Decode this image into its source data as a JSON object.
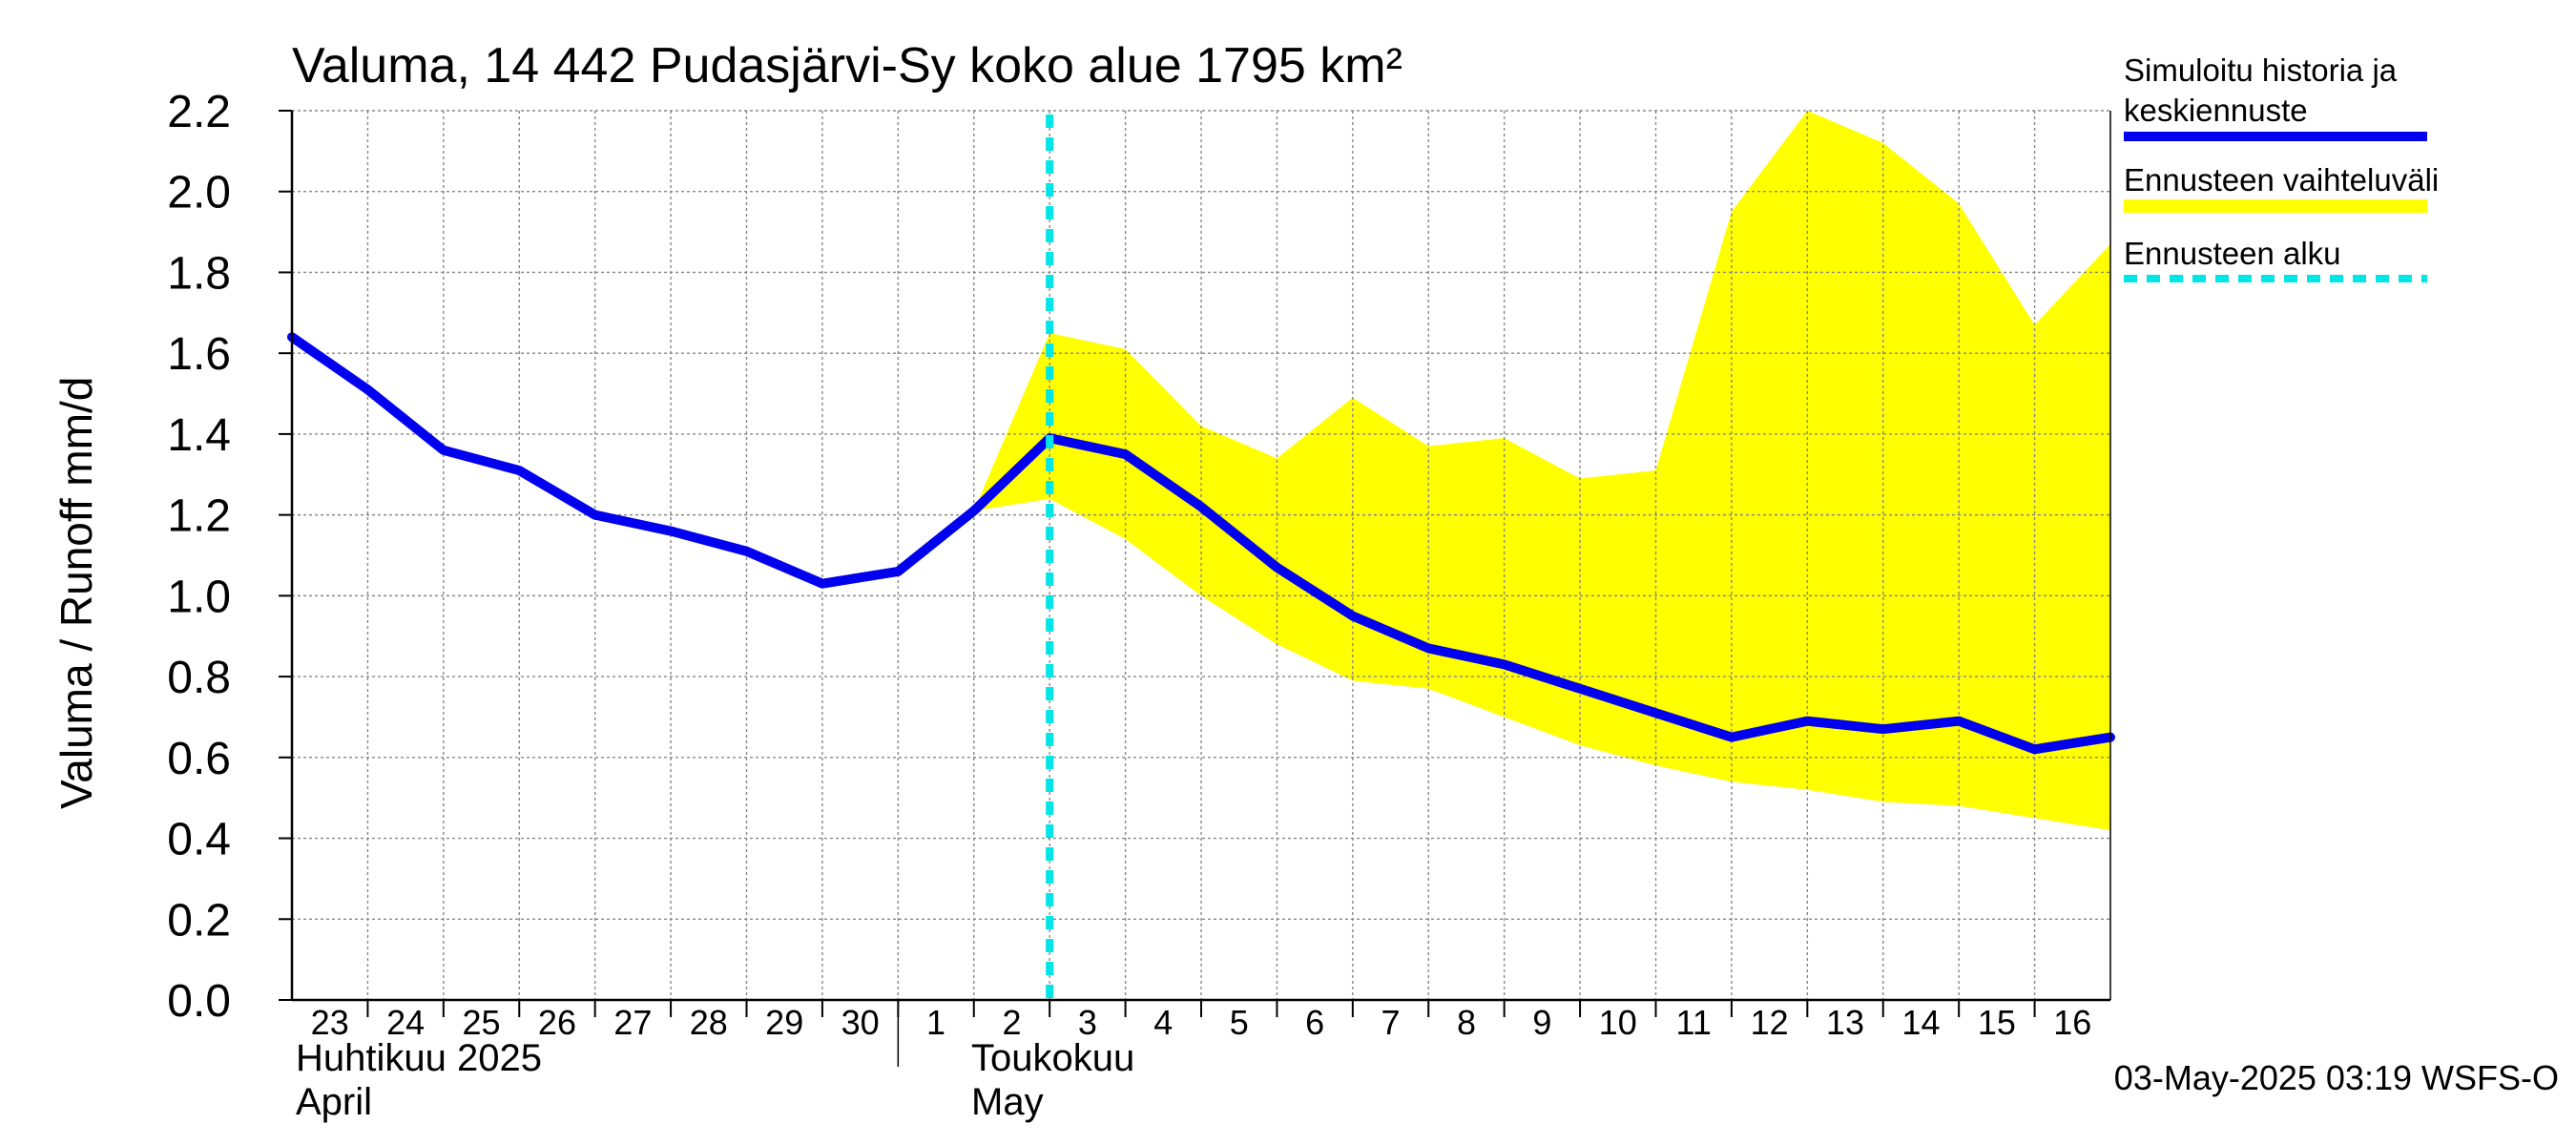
{
  "chart_data": {
    "type": "line",
    "title": "Valuma, 14 442 Pudasjärvi-Sy koko alue 1795 km²",
    "ylabel": "Valuma / Runoff     mm/d",
    "ylim": [
      0,
      2.2
    ],
    "yticks": [
      "0.0",
      "0.2",
      "0.4",
      "0.6",
      "0.8",
      "1.0",
      "1.2",
      "1.4",
      "1.6",
      "1.8",
      "2.0",
      "2.2"
    ],
    "x_days": [
      "23",
      "24",
      "25",
      "26",
      "27",
      "28",
      "29",
      "30",
      "1",
      "2",
      "3",
      "4",
      "5",
      "6",
      "7",
      "8",
      "9",
      "10",
      "11",
      "12",
      "13",
      "14",
      "15",
      "16"
    ],
    "month_labels": {
      "april_fi": "Huhtikuu  2025",
      "april_en": "April",
      "may_fi": "Toukokuu",
      "may_en": "May"
    },
    "grid": true,
    "legend_position": "right",
    "forecast_start_day_index": 10,
    "series": [
      {
        "name": "Simuloitu historia ja keskiennuste",
        "color": "#0000ee",
        "x": [
          0,
          1,
          2,
          3,
          4,
          5,
          6,
          7,
          8,
          9,
          10,
          11,
          12,
          13,
          14,
          15,
          16,
          17,
          18,
          19,
          20,
          21,
          22,
          23,
          24
        ],
        "values": [
          1.64,
          1.51,
          1.36,
          1.31,
          1.2,
          1.16,
          1.11,
          1.03,
          1.06,
          1.21,
          1.39,
          1.35,
          1.22,
          1.07,
          0.95,
          0.87,
          0.83,
          0.77,
          0.71,
          0.65,
          0.69,
          0.67,
          0.69,
          0.62,
          0.65
        ]
      }
    ],
    "band": {
      "name": "Ennusteen vaihteluväli",
      "color": "#ffff00",
      "x": [
        9,
        10,
        11,
        12,
        13,
        14,
        15,
        16,
        17,
        18,
        19,
        20,
        21,
        22,
        23,
        24
      ],
      "upper": [
        1.21,
        1.65,
        1.61,
        1.42,
        1.34,
        1.49,
        1.37,
        1.39,
        1.29,
        1.31,
        1.95,
        2.2,
        2.12,
        1.97,
        1.67,
        1.87
      ],
      "lower": [
        1.21,
        1.24,
        1.14,
        1.0,
        0.88,
        0.79,
        0.77,
        0.7,
        0.63,
        0.58,
        0.54,
        0.52,
        0.49,
        0.48,
        0.45,
        0.42
      ]
    },
    "legend": [
      {
        "label_line1": "Simuloitu historia ja",
        "label_line2": "keskiennuste",
        "color": "#0000ee",
        "style": "solid"
      },
      {
        "label_line1": "Ennusteen vaihteluväli",
        "label_line2": "",
        "color": "#ffff00",
        "style": "band"
      },
      {
        "label_line1": "Ennusteen alku",
        "label_line2": "",
        "color": "#00e5e5",
        "style": "dashed"
      }
    ],
    "footer": "03-May-2025 03:19 WSFS-O"
  }
}
